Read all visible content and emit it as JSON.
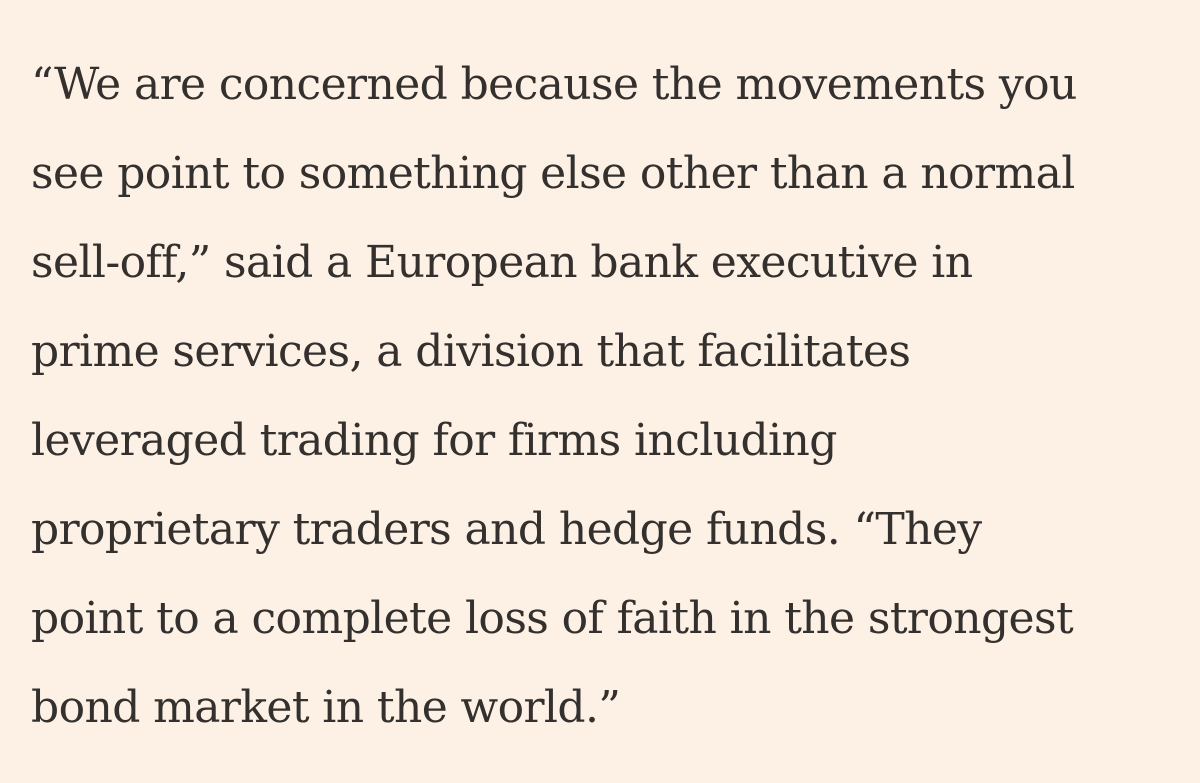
{
  "background_color": "#fdf1e6",
  "text_color": "#33302e",
  "paragraph": {
    "lines": [
      "“We are concerned because the movements you",
      "see point to something else other than a normal",
      "sell-off,” said a European bank executive in",
      "prime services, a division that facilitates",
      "leveraged trading for firms including",
      "proprietary traders and hedge funds. “They",
      "point to a complete loss of faith in the strongest",
      "bond market in the world.”"
    ]
  }
}
